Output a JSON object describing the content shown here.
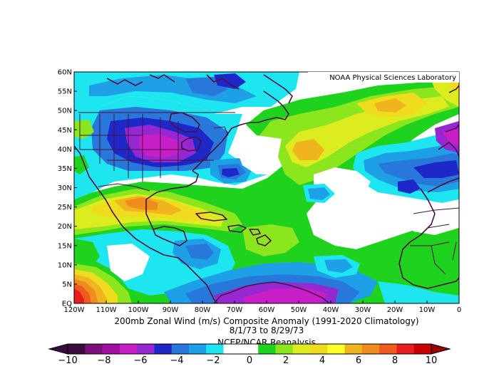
{
  "map": {
    "credit": "NOAA Physical Sciences Laboratory",
    "lat_labels": [
      "EQ",
      "5N",
      "10N",
      "15N",
      "20N",
      "25N",
      "30N",
      "35N",
      "40N",
      "45N",
      "50N",
      "55N",
      "60N"
    ],
    "lon_labels": [
      "120W",
      "110W",
      "100W",
      "90W",
      "80W",
      "70W",
      "60W",
      "50W",
      "40W",
      "30W",
      "20W",
      "10W",
      "0"
    ],
    "extent": {
      "lon_min": -120,
      "lon_max": 0,
      "lat_min": 0,
      "lat_max": 60
    }
  },
  "caption": {
    "line1": "200mb Zonal Wind (m/s) Composite Anomaly (1991-2020 Climatology)",
    "line2": "8/1/73  to 8/29/73",
    "line3": "NCEP/NCAR Reanalysis"
  },
  "colorbar": {
    "labels": [
      "−10",
      "−8",
      "−6",
      "−4",
      "−2",
      "0",
      "2",
      "4",
      "6",
      "8",
      "10"
    ],
    "colors": [
      "#3d0a3d",
      "#7a0f7a",
      "#a010a0",
      "#c81ec8",
      "#9628d2",
      "#1e28c8",
      "#2878dc",
      "#1ea0e6",
      "#1ee6f0",
      "#ffffff",
      "#ffffff",
      "#1ed21e",
      "#8ce61e",
      "#dcec1e",
      "#f0dc1e",
      "#ffff28",
      "#f0b41e",
      "#f08c1e",
      "#f05a1e",
      "#e61e1e",
      "#c80000"
    ]
  }
}
